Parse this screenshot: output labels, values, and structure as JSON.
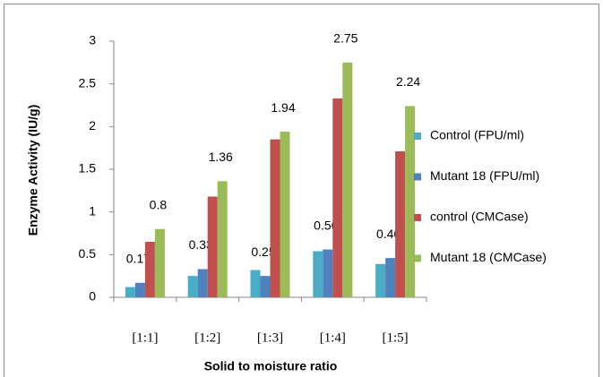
{
  "chart_data": {
    "type": "bar",
    "x_label": "Solid to moisture ratio",
    "y_label": "Enzyme Activity (IU/g)",
    "categories": [
      "[1:1]",
      "[1:2]",
      "[1:3]",
      "[1:4]",
      "[1:5]"
    ],
    "series": [
      {
        "name": "Control (FPU/ml)",
        "color": "#4bacc6",
        "values": [
          0.12,
          0.25,
          0.32,
          0.54,
          0.39
        ],
        "data_labels": false
      },
      {
        "name": "Mutant 18 (FPU/ml)",
        "color": "#4f81bd",
        "values": [
          0.17,
          0.33,
          0.25,
          0.56,
          0.46
        ],
        "data_labels": true
      },
      {
        "name": "control (CMCase)",
        "color": "#c0504d",
        "values": [
          0.65,
          1.18,
          1.85,
          2.33,
          1.71
        ],
        "data_labels": false
      },
      {
        "name": "Mutant 18 (CMCase)",
        "color": "#9bbb59",
        "values": [
          0.8,
          1.36,
          1.94,
          2.75,
          2.24
        ],
        "data_labels": true
      }
    ],
    "ylim": [
      0,
      3
    ],
    "yticks": [
      0,
      0.5,
      1,
      1.5,
      2,
      2.5,
      3
    ],
    "grid": false,
    "legend": "right"
  }
}
